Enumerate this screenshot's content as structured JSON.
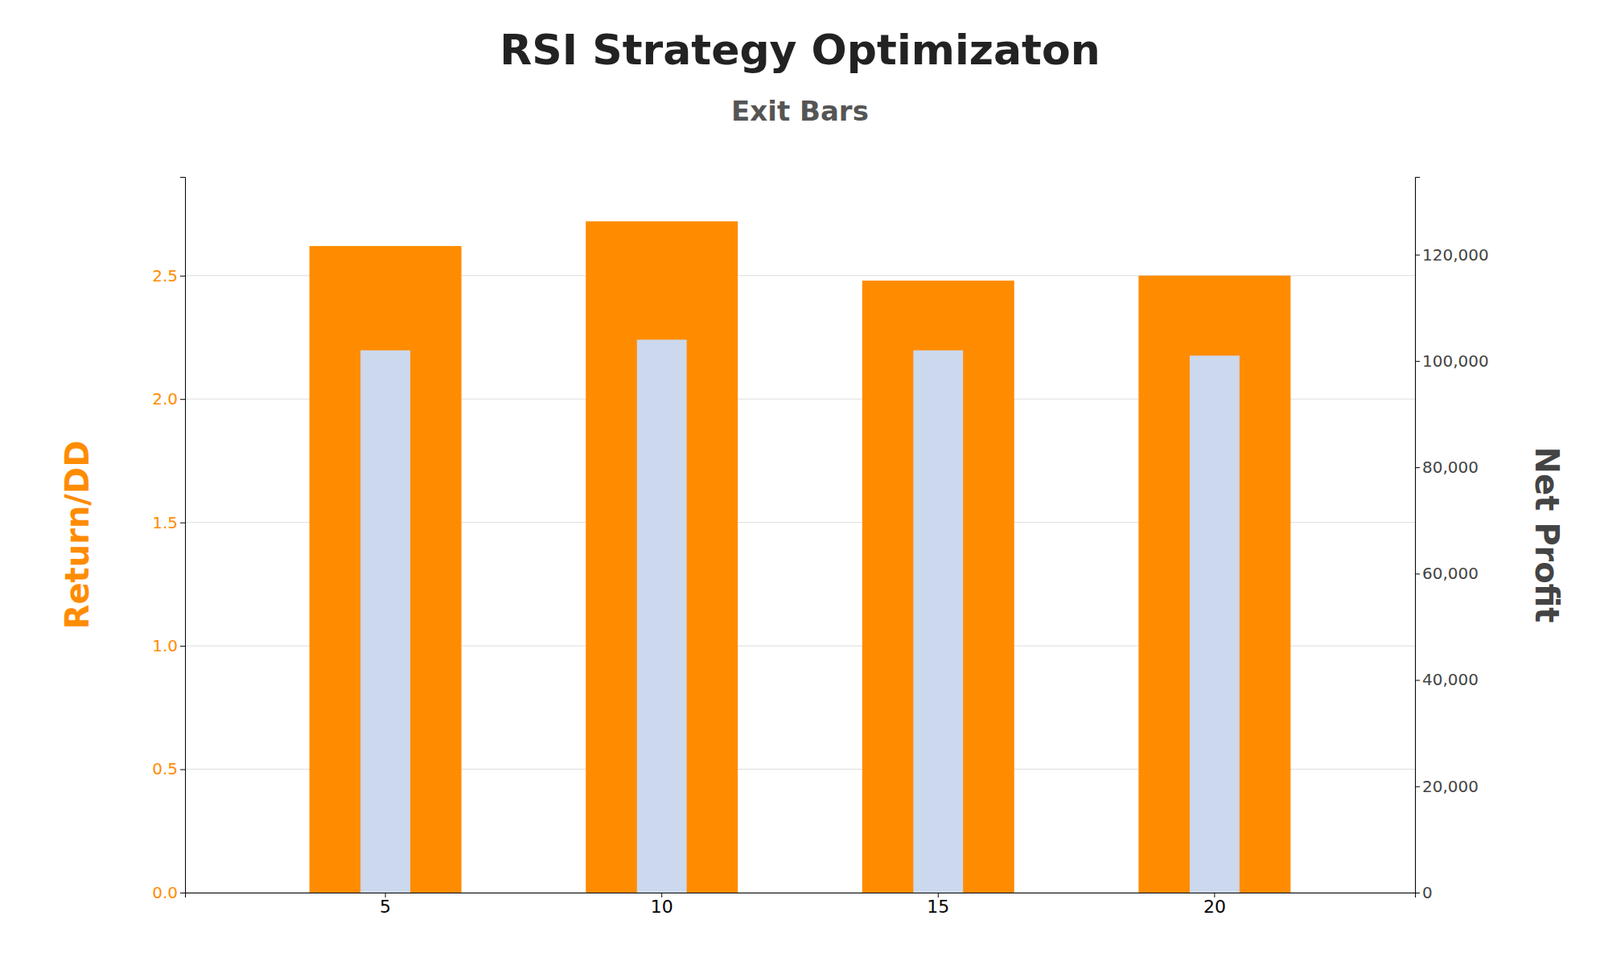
{
  "chart_data": {
    "type": "bar",
    "title": "RSI Strategy Optimizaton",
    "subtitle": "Exit Bars",
    "y_label": "Return/DD",
    "y2_label": "Net Profit",
    "categories": [
      "5",
      "10",
      "15",
      "20"
    ],
    "series": [
      {
        "color": "#ff8c00",
        "values": [
          2.62,
          2.72,
          2.48,
          2.5
        ]
      },
      {
        "color": "#ccd8ee",
        "values": [
          102000,
          104000,
          102000,
          101000
        ],
        "axis": "y2"
      }
    ],
    "ylim": [
      0,
      2.9
    ],
    "yticks": [
      {
        "value": 0.0,
        "label": "0.0"
      },
      0.5,
      {
        "value": 1.0,
        "label": "1.0"
      },
      1.5,
      {
        "value": 2.0,
        "label": "2.0"
      },
      2.5
    ],
    "y2lim": [
      0,
      134615
    ],
    "y2ticks": [
      0,
      {
        "value": 20000,
        "label": "20,000"
      },
      {
        "value": 40000,
        "label": "40,000"
      },
      {
        "value": 60000,
        "label": "60,000"
      },
      {
        "value": 80000,
        "label": "80,000"
      },
      {
        "value": 100000,
        "label": "100,000"
      },
      {
        "value": 120000,
        "label": "120,000"
      }
    ],
    "grid": true
  }
}
